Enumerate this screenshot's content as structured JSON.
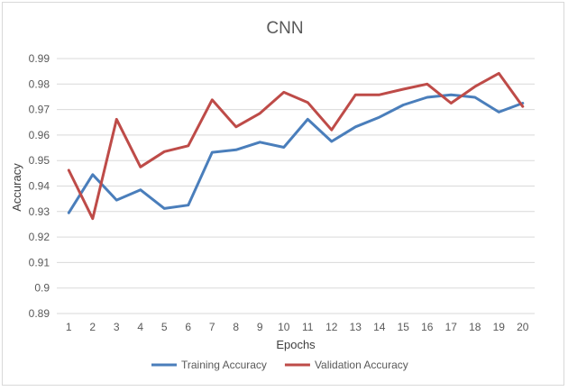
{
  "chart_data": {
    "type": "line",
    "title": "CNN",
    "xlabel": "Epochs",
    "ylabel": "Accuracy",
    "x": [
      1,
      2,
      3,
      4,
      5,
      6,
      7,
      8,
      9,
      10,
      11,
      12,
      13,
      14,
      15,
      16,
      17,
      18,
      19,
      20
    ],
    "ylim": [
      0.89,
      0.99
    ],
    "yticks": [
      "0.89",
      "0.9",
      "0.91",
      "0.92",
      "0.93",
      "0.94",
      "0.95",
      "0.96",
      "0.97",
      "0.98",
      "0.99"
    ],
    "grid": true,
    "legend_position": "bottom",
    "series": [
      {
        "name": "Training Accuracy",
        "color": "#4a7ebb",
        "values": [
          0.9295,
          0.9445,
          0.9345,
          0.9385,
          0.9312,
          0.9325,
          0.9532,
          0.9542,
          0.9572,
          0.9552,
          0.9662,
          0.9575,
          0.9632,
          0.967,
          0.9718,
          0.9748,
          0.9758,
          0.9748,
          0.969,
          0.9725
        ]
      },
      {
        "name": "Validation Accuracy",
        "color": "#be4b48",
        "values": [
          0.9462,
          0.9272,
          0.9662,
          0.9475,
          0.9535,
          0.9558,
          0.9738,
          0.9632,
          0.9685,
          0.9768,
          0.9728,
          0.962,
          0.9758,
          0.9758,
          0.978,
          0.98,
          0.9725,
          0.979,
          0.9842,
          0.9712
        ]
      }
    ]
  }
}
